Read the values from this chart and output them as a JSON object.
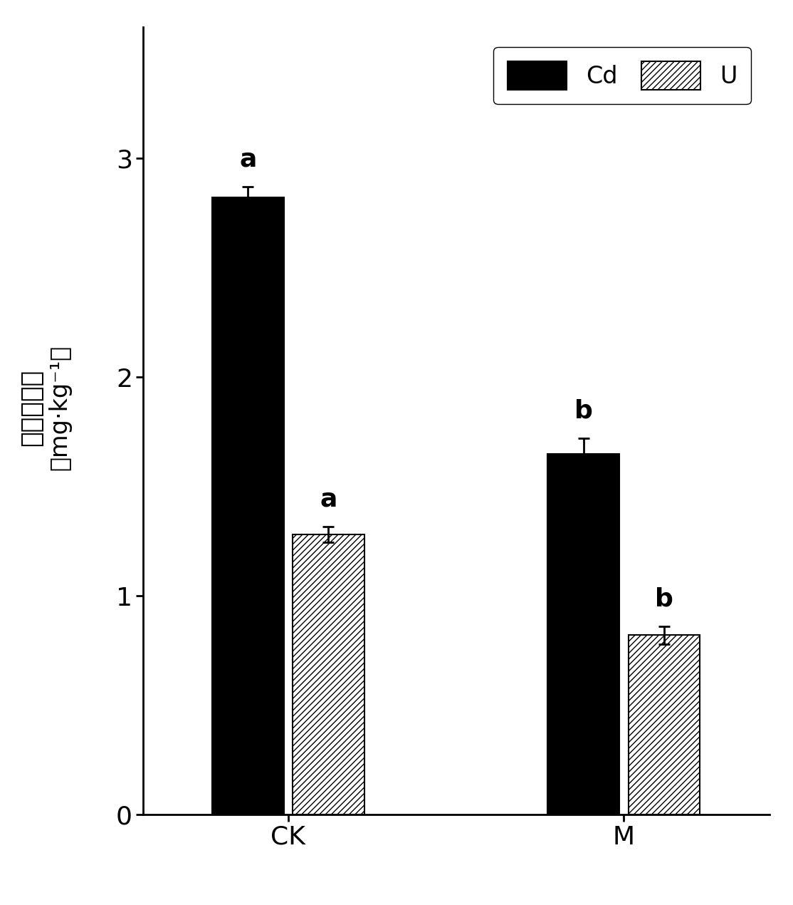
{
  "groups": [
    "CK",
    "M"
  ],
  "series": [
    "Cd",
    "U"
  ],
  "values": {
    "CK": {
      "Cd": 2.82,
      "U": 1.28
    },
    "M": {
      "Cd": 1.65,
      "U": 0.82
    }
  },
  "errors": {
    "CK": {
      "Cd": 0.05,
      "U": 0.035
    },
    "M": {
      "Cd": 0.07,
      "U": 0.04
    }
  },
  "labels": {
    "CK": {
      "Cd": "a",
      "U": "a"
    },
    "M": {
      "Cd": "b",
      "U": "b"
    }
  },
  "bar_colors": {
    "Cd": "#000000",
    "U": "#ffffff"
  },
  "hatch": {
    "Cd": "",
    "U": "////"
  },
  "ylabel_chinese": "鑰、铀浓度",
  "ylabel_unit": "mg·kg⁻¹",
  "xlabel_labels": [
    "CK",
    "M"
  ],
  "ylim": [
    0,
    3.6
  ],
  "yticks": [
    0,
    1,
    2,
    3
  ],
  "bar_width": 0.32,
  "group_positions": [
    1.0,
    2.5
  ],
  "figsize": [
    11.14,
    12.7
  ],
  "dpi": 100,
  "background_color": "#ffffff",
  "legend_labels": [
    "Cd",
    "U"
  ],
  "label_fontsize": 26,
  "tick_fontsize": 26,
  "annotation_fontsize": 26,
  "legend_fontsize": 24
}
